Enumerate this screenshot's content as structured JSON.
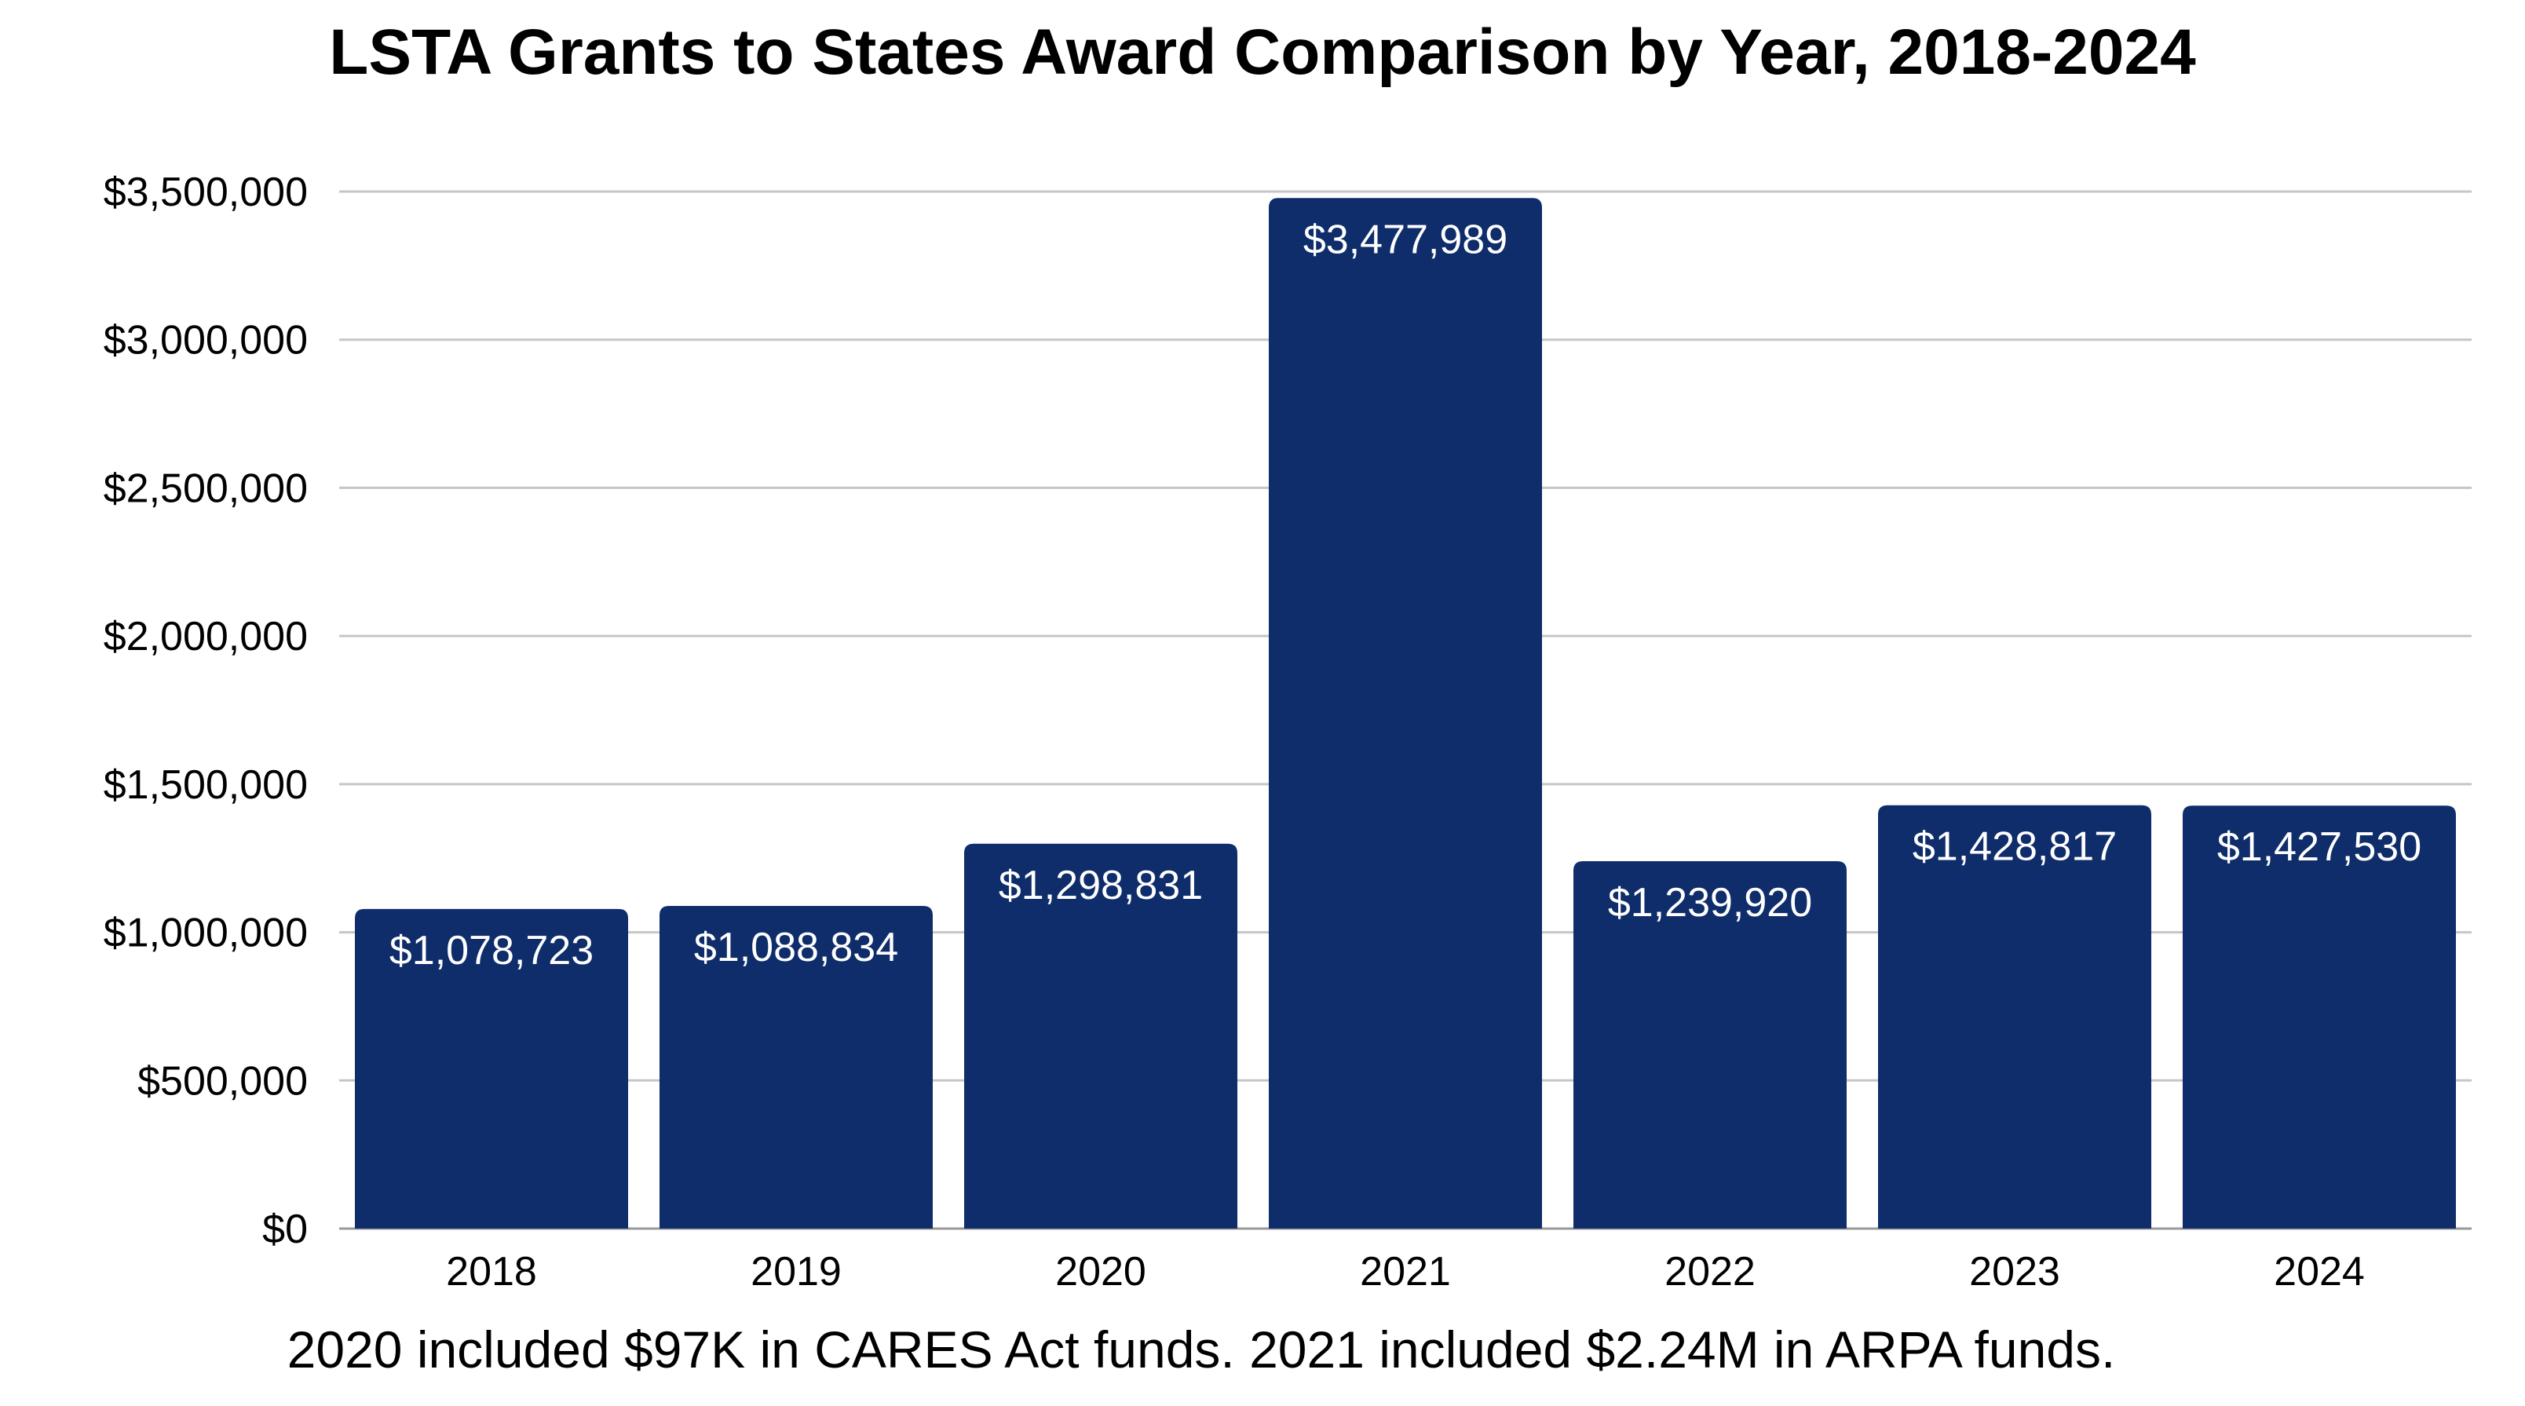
{
  "chart_data": {
    "type": "bar",
    "title": "LSTA Grants to States Award Comparison by Year, 2018-2024",
    "categories": [
      "2018",
      "2019",
      "2020",
      "2021",
      "2022",
      "2023",
      "2024"
    ],
    "values": [
      1078723,
      1088834,
      1298831,
      3477989,
      1239920,
      1428817,
      1427530
    ],
    "data_labels": [
      "$1,078,723",
      "$1,088,834",
      "$1,298,831",
      "$3,477,989",
      "$1,239,920",
      "$1,428,817",
      "$1,427,530"
    ],
    "ylim": [
      0,
      3500000
    ],
    "yticks": [
      0,
      500000,
      1000000,
      1500000,
      2000000,
      2500000,
      3000000,
      3500000
    ],
    "ytick_labels": [
      "$0",
      "$500,000",
      "$1,000,000",
      "$1,500,000",
      "$2,000,000",
      "$2,500,000",
      "$3,000,000",
      "$3,500,000"
    ],
    "xlabel": "",
    "ylabel": "",
    "grid": true,
    "bar_color": "#0f2d6b",
    "footnote": "2020 included $97K in CARES Act funds. 2021 included $2.24M in ARPA funds."
  }
}
